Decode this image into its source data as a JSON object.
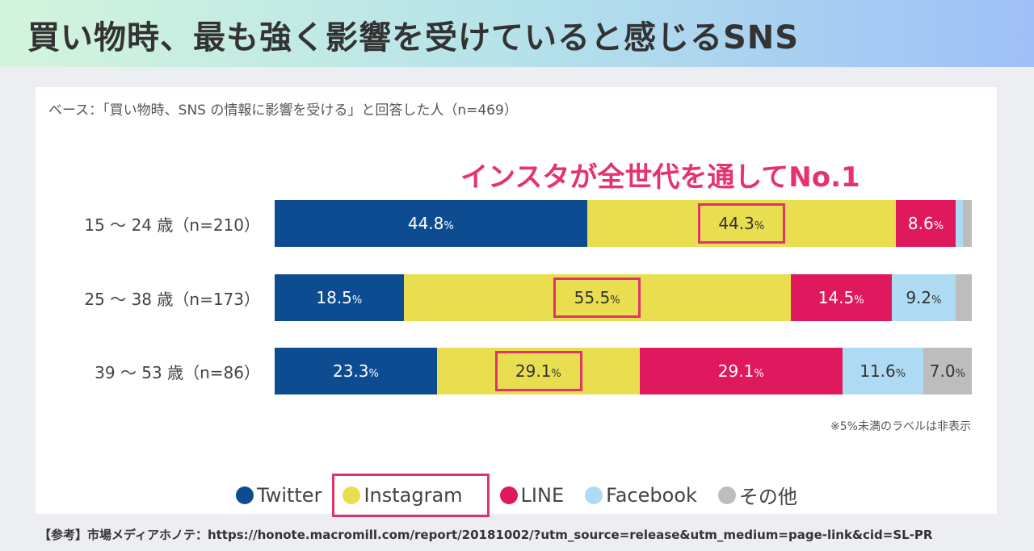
{
  "title": "買い物時、最も強く影響を受けていると感じるSNS",
  "base_note": "ベース：「買い物時、SNS の情報に影響を受ける」と回答した人（n=469）",
  "headline": "インスタが全世代を通してNo.1",
  "footnote": "※5%未満のラベルは非表示",
  "source": "【参考】市場メディアホノテ：https://honote.macromill.com/report/20181002/?utm_source=release&utm_medium=page-link&cid=SL-PR",
  "chart_data": {
    "type": "bar",
    "stacked": true,
    "orientation": "horizontal",
    "categories": [
      "15 〜 24 歳（n=210）",
      "25 〜 38 歳（n=173）",
      "39 〜 53 歳（n=86）"
    ],
    "series": [
      {
        "name": "Twitter",
        "color": "#0e4c92",
        "text": "#ffffff",
        "values": [
          44.8,
          18.5,
          23.3
        ]
      },
      {
        "name": "Instagram",
        "color": "#e9dd50",
        "text": "#333333",
        "values": [
          44.3,
          55.5,
          29.1
        ]
      },
      {
        "name": "LINE",
        "color": "#e0195e",
        "text": "#ffffff",
        "values": [
          8.6,
          14.5,
          29.1
        ]
      },
      {
        "name": "Facebook",
        "color": "#aedbf3",
        "text": "#333333",
        "values": [
          1.0,
          9.2,
          11.6
        ]
      },
      {
        "name": "その他",
        "color": "#bdbdbd",
        "text": "#333333",
        "values": [
          1.3,
          2.3,
          7.0
        ]
      }
    ],
    "label_threshold": 5,
    "unit": "%",
    "highlight_series": "Instagram",
    "highlight_color": "#e0336f",
    "xlim": [
      0,
      100
    ]
  }
}
